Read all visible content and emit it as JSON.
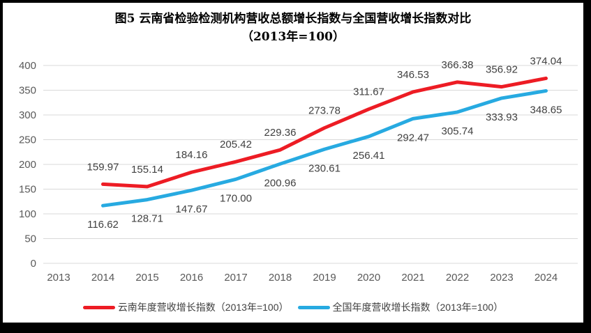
{
  "title": {
    "line1": "图5  云南省检验检测机构营收总额增长指数与全国营收增长指数对比",
    "line2": "（2013年=100）"
  },
  "chart_data": {
    "type": "line",
    "title": "图5 云南省检验检测机构营收总额增长指数与全国营收增长指数对比（2013年=100）",
    "categories": [
      "2013",
      "2014",
      "2015",
      "2016",
      "2017",
      "2018",
      "2019",
      "2020",
      "2021",
      "2022",
      "2023",
      "2024"
    ],
    "series": [
      {
        "name": "云南年度营收增长指数（2013年=100）",
        "color": "#ED1C24",
        "start_index": 1,
        "values": [
          159.97,
          155.14,
          184.16,
          205.42,
          229.36,
          273.78,
          311.67,
          346.53,
          366.38,
          356.92,
          374.04
        ],
        "labels": [
          "159.97",
          "155.14",
          "184.16",
          "205.42",
          "229.36",
          "273.78",
          "311.67",
          "346.53",
          "366.38",
          "356.92",
          "374.04"
        ]
      },
      {
        "name": "全国年度营收增长指数（2013年=100）",
        "color": "#27AAE1",
        "start_index": 1,
        "values": [
          116.62,
          128.71,
          147.67,
          170.0,
          200.96,
          230.61,
          256.41,
          292.47,
          305.74,
          333.93,
          348.65
        ],
        "labels": [
          "116.62",
          "128.71",
          "147.67",
          "170.00",
          "200.96",
          "230.61",
          "256.41",
          "292.47",
          "305.74",
          "333.93",
          "348.65"
        ]
      }
    ],
    "xlabel": "",
    "ylabel": "",
    "ylim": [
      0,
      400
    ],
    "ytick_step": 50,
    "yticks": [
      "0",
      "50",
      "100",
      "150",
      "200",
      "250",
      "300",
      "350",
      "400"
    ],
    "grid": true,
    "legend_position": "bottom",
    "value_labels": true
  },
  "colors": {
    "gridline": "#D9D9D9",
    "axis_tick_label": "#595959",
    "data_label": "#404040",
    "frame_border": "#000000",
    "background": "#ffffff"
  }
}
